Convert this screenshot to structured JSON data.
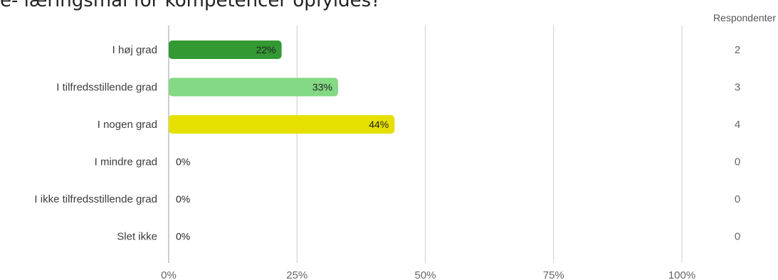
{
  "title": "e- læringsmål for kompetencer opfyldes?",
  "chart_data": {
    "type": "bar",
    "orientation": "horizontal",
    "categories": [
      "I høj grad",
      "I tilfredsstillende grad",
      "I nogen grad",
      "I mindre grad",
      "I ikke tilfredsstillende grad",
      "Slet ikke"
    ],
    "values": [
      22,
      33,
      44,
      0,
      0,
      0
    ],
    "data_labels": [
      "22%",
      "33%",
      "44%",
      "0%",
      "0%",
      "0%"
    ],
    "colors": [
      "#339933",
      "#84d984",
      "#e6e000",
      "#cccccc",
      "#cccccc",
      "#cccccc"
    ],
    "respondents_header": "Respondenter",
    "respondents": [
      "2",
      "3",
      "4",
      "0",
      "0",
      "0"
    ],
    "x_ticks": [
      "0%",
      "25%",
      "50%",
      "75%",
      "100%"
    ],
    "xlim": [
      0,
      100
    ],
    "grid": true
  }
}
